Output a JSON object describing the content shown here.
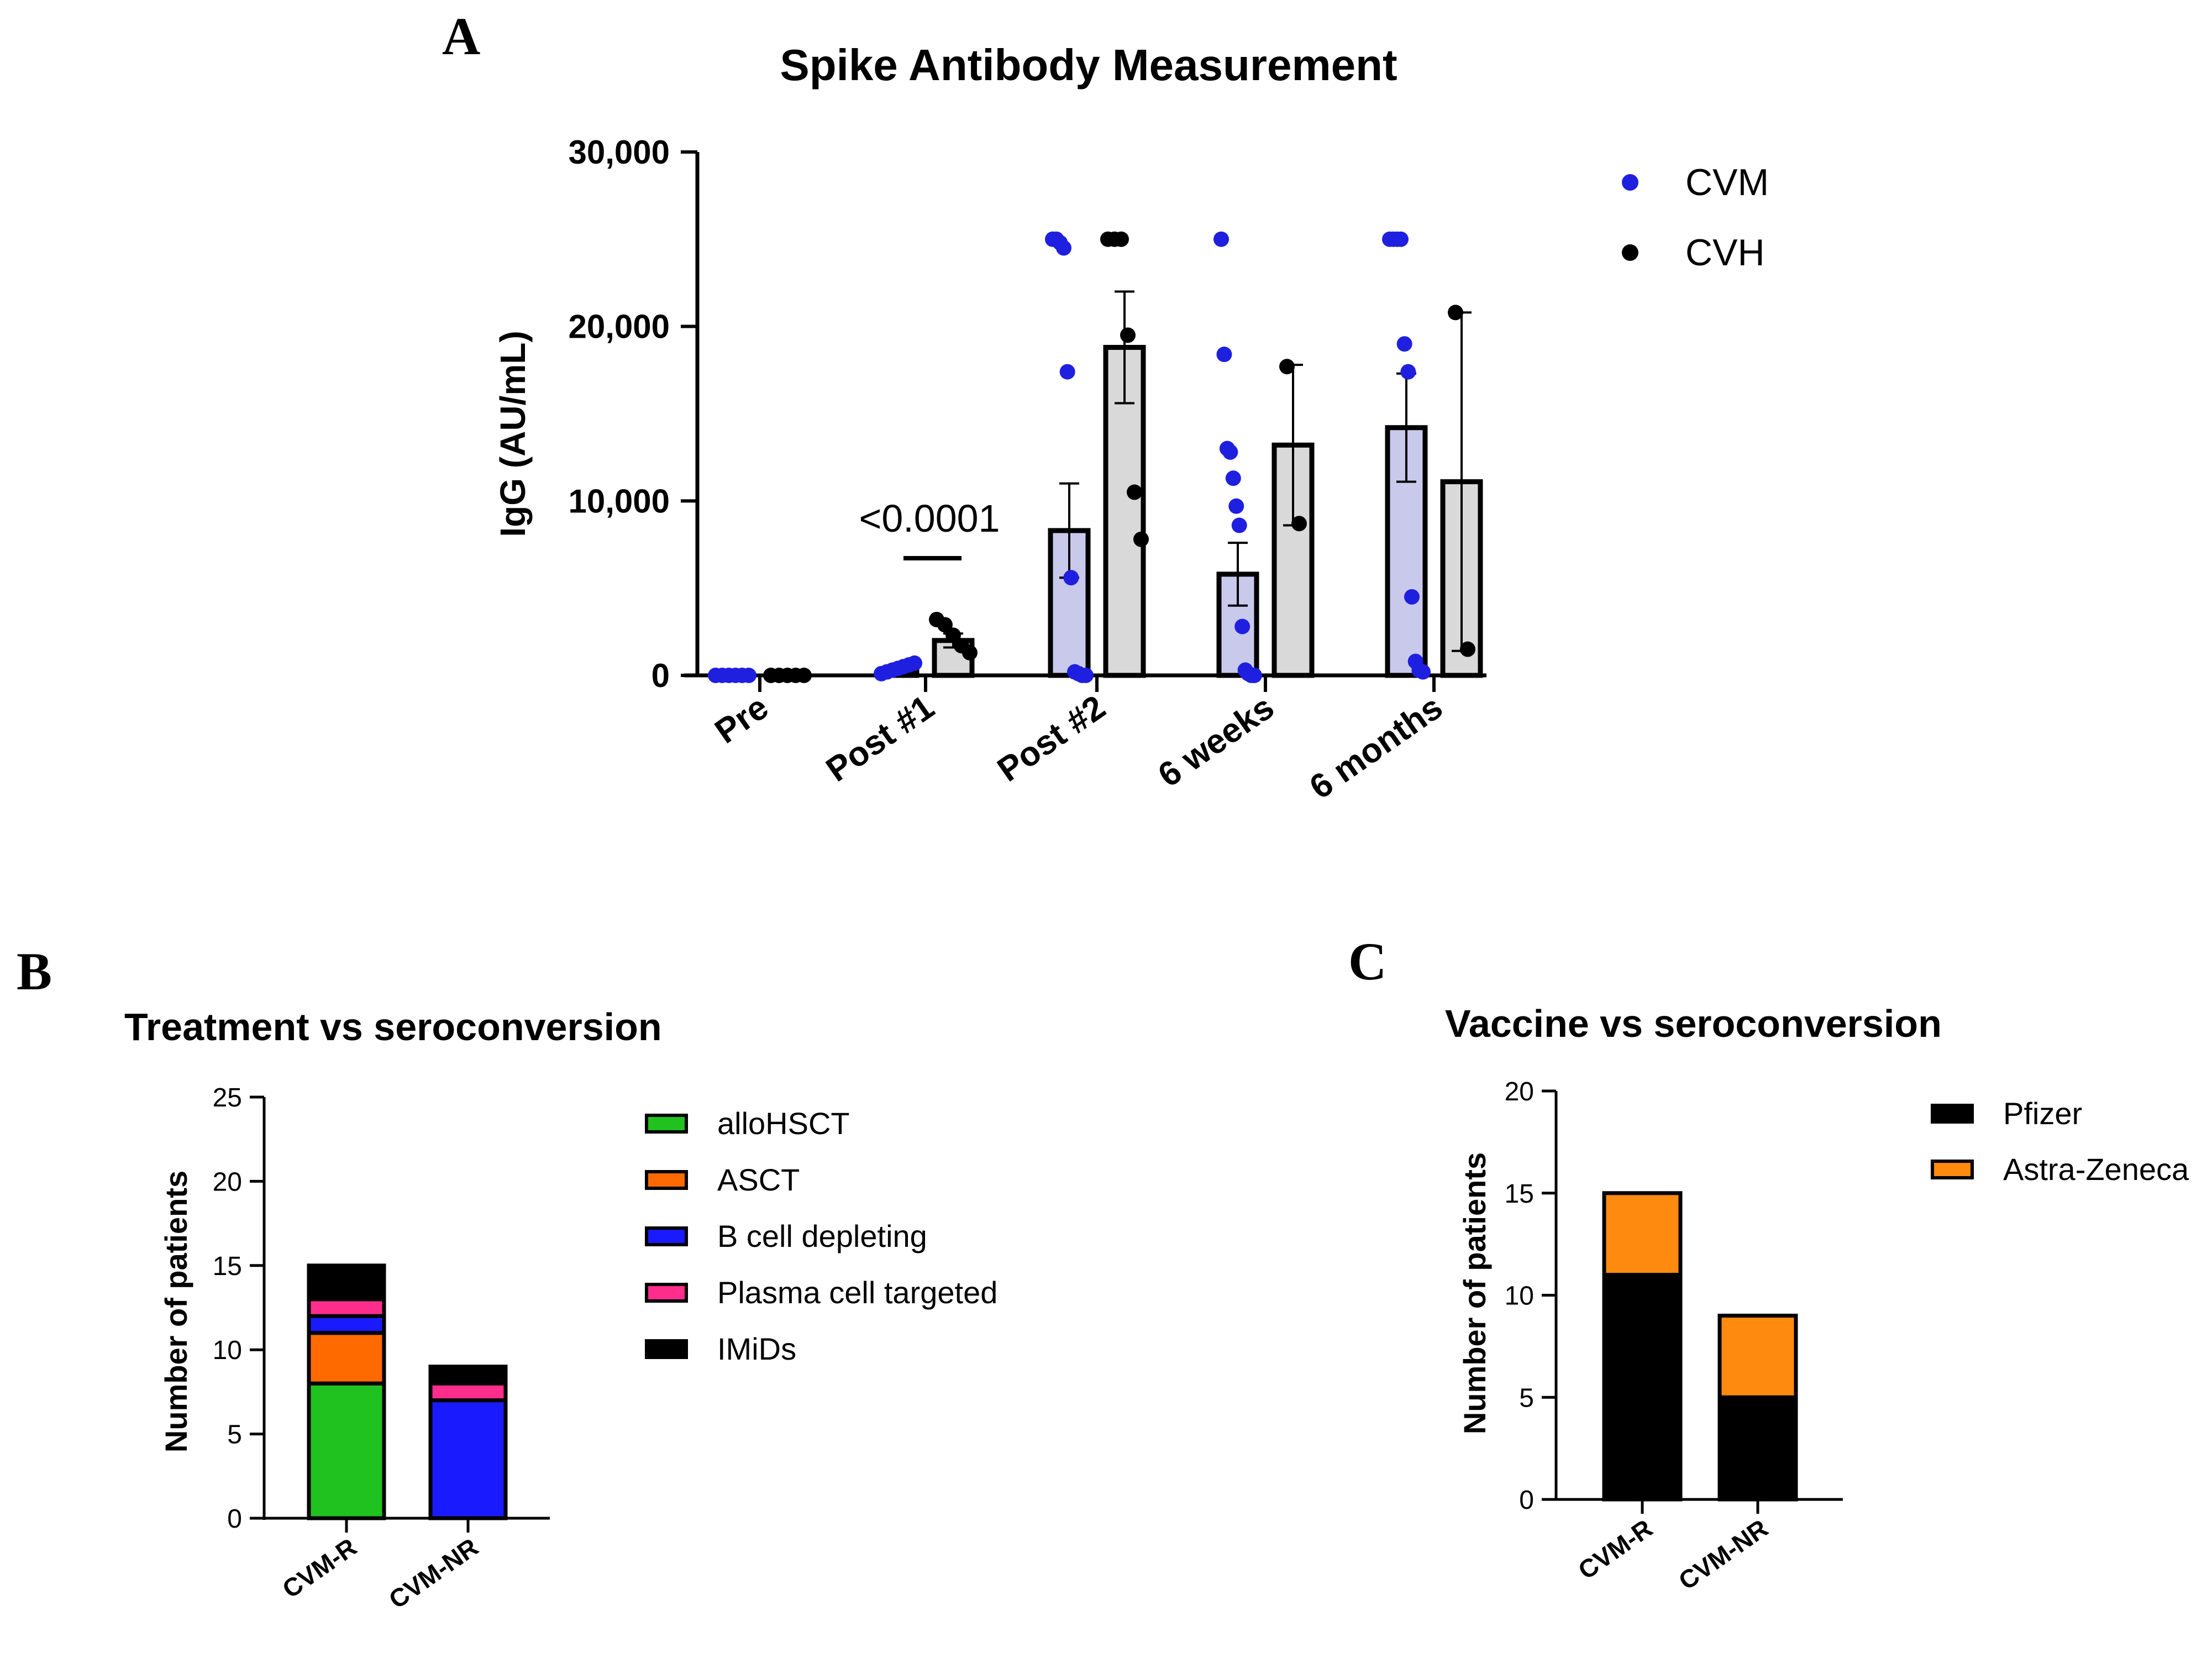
{
  "panels": {
    "a": {
      "letter": "A"
    },
    "b": {
      "letter": "B"
    },
    "c": {
      "letter": "C"
    }
  },
  "chart_data": [
    {
      "id": "A",
      "type": "bar",
      "title": "Spike Antibody Measurement",
      "xlabel": "",
      "ylabel": "IgG (AU/mL)",
      "ylim": [
        0,
        30000
      ],
      "yticks": [
        0,
        10000,
        20000,
        30000
      ],
      "ytick_labels": [
        "0",
        "10,000",
        "20,000",
        "30,000"
      ],
      "categories": [
        "Pre",
        "Post #1",
        "Post #2",
        "6 weeks",
        "6 months"
      ],
      "legend_position": "top-right",
      "annotation": {
        "text": "<0.0001",
        "category": "Post #1"
      },
      "series": [
        {
          "name": "CVM",
          "color": "#1f1fe0",
          "bar_fill": "#c9c9ec",
          "means": [
            0,
            250,
            8300,
            5800,
            14200
          ],
          "sem": [
            0,
            0,
            2700,
            1800,
            3100
          ],
          "points": [
            [
              0,
              0,
              0,
              0,
              0,
              0
            ],
            [
              100,
              200,
              300,
              400,
              500,
              600,
              700
            ],
            [
              25000,
              25000,
              24800,
              24500,
              17400,
              5600,
              200,
              100,
              0,
              0
            ],
            [
              25000,
              18400,
              13000,
              12800,
              11300,
              9700,
              8600,
              2800,
              300,
              100,
              0,
              0
            ],
            [
              25000,
              25000,
              25000,
              25000,
              19000,
              17400,
              4500,
              800,
              300,
              200
            ]
          ]
        },
        {
          "name": "CVH",
          "color": "#000000",
          "bar_fill": "#d9d9d9",
          "means": [
            0,
            2000,
            18800,
            13200,
            11100
          ],
          "sem": [
            0,
            400,
            3200,
            4600,
            9700
          ],
          "points": [
            [
              0,
              0,
              0,
              0,
              0
            ],
            [
              3200,
              2900,
              2300,
              1700,
              1300
            ],
            [
              25000,
              25000,
              25000,
              19500,
              10500,
              7800
            ],
            [
              17700,
              8700
            ],
            [
              20800,
              1500
            ]
          ]
        }
      ]
    },
    {
      "id": "B",
      "type": "bar",
      "stacked": true,
      "title": "Treatment vs seroconversion",
      "xlabel": "",
      "ylabel": "Number of patients",
      "ylim": [
        0,
        25
      ],
      "yticks": [
        0,
        5,
        10,
        15,
        20,
        25
      ],
      "ytick_labels": [
        "0",
        "5",
        "10",
        "15",
        "20",
        "25"
      ],
      "categories": [
        "CVM-R",
        "CVM-NR"
      ],
      "legend_position": "right",
      "series": [
        {
          "name": "alloHSCT",
          "color": "#1fc21f",
          "values": [
            8,
            0
          ]
        },
        {
          "name": "ASCT",
          "color": "#ff6a00",
          "values": [
            3,
            0
          ]
        },
        {
          "name": "B cell depleting",
          "color": "#1a1aff",
          "values": [
            1,
            7
          ]
        },
        {
          "name": "Plasma cell targeted",
          "color": "#ff2d8c",
          "values": [
            1,
            1
          ]
        },
        {
          "name": "IMiDs",
          "color": "#000000",
          "values": [
            2,
            1
          ]
        }
      ]
    },
    {
      "id": "C",
      "type": "bar",
      "stacked": true,
      "title": "Vaccine vs seroconversion",
      "xlabel": "",
      "ylabel": "Number of patients",
      "ylim": [
        0,
        20
      ],
      "yticks": [
        0,
        5,
        10,
        15,
        20
      ],
      "ytick_labels": [
        "0",
        "5",
        "10",
        "15",
        "20"
      ],
      "categories": [
        "CVM-R",
        "CVM-NR"
      ],
      "legend_position": "right",
      "series": [
        {
          "name": "Pfizer",
          "color": "#000000",
          "values": [
            11,
            5
          ]
        },
        {
          "name": "Astra-Zeneca",
          "color": "#ff8a10",
          "values": [
            4,
            4
          ]
        }
      ]
    }
  ]
}
